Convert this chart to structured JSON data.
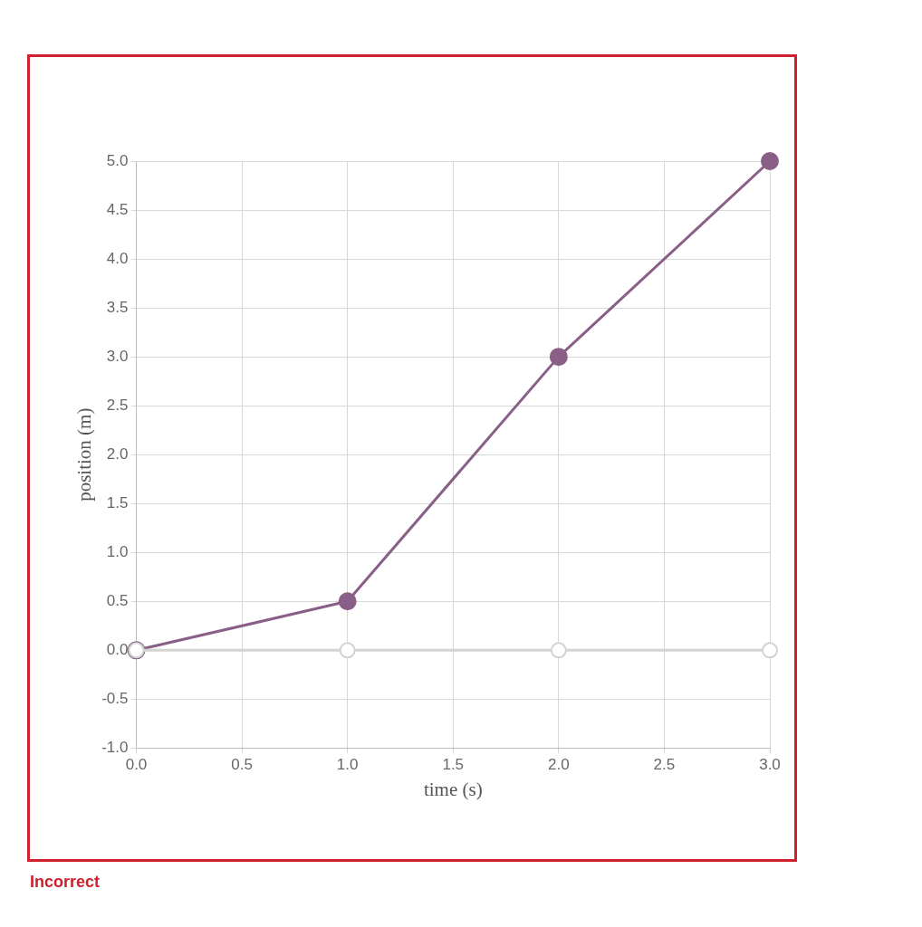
{
  "chart_data": {
    "type": "line",
    "xlabel": "time (s)",
    "ylabel": "position (m)",
    "annotations": [
      "Incorrect"
    ],
    "x": [
      0,
      1,
      2,
      3
    ],
    "series": [
      {
        "color": "#8a5f87",
        "values": [
          0,
          0.5,
          3,
          5
        ]
      },
      {
        "color": "#d3d3d3",
        "values": [
          0,
          0,
          0,
          0
        ]
      }
    ],
    "xlim": [
      0,
      3
    ],
    "xticks": [
      {
        "value": 0,
        "label": "0.0"
      },
      {
        "value": 0.5,
        "label": "0.5"
      },
      {
        "value": 1,
        "label": "1.0"
      },
      {
        "value": 1.5,
        "label": "1.5"
      },
      {
        "value": 2,
        "label": "2.0"
      },
      {
        "value": 2.5,
        "label": "2.5"
      },
      {
        "value": 3,
        "label": "3.0"
      }
    ],
    "ylim": [
      -1,
      5
    ],
    "yticks": [
      {
        "value": -1,
        "label": "-1.0"
      },
      {
        "value": -0.5,
        "label": "-0.5"
      },
      {
        "value": 0,
        "label": "0.0"
      },
      {
        "value": 0.5,
        "label": "0.5"
      },
      {
        "value": 1,
        "label": "1.0"
      },
      {
        "value": 1.5,
        "label": "1.5"
      },
      {
        "value": 2,
        "label": "2.0"
      },
      {
        "value": 2.5,
        "label": "2.5"
      },
      {
        "value": 3,
        "label": "3.0"
      },
      {
        "value": 3.5,
        "label": "3.5"
      },
      {
        "value": 4,
        "label": "4.0"
      },
      {
        "value": 4.5,
        "label": "4.5"
      },
      {
        "value": 5,
        "label": "5.0"
      }
    ],
    "grid": true,
    "legend": false,
    "marker": "circle",
    "line_style": "solid"
  }
}
